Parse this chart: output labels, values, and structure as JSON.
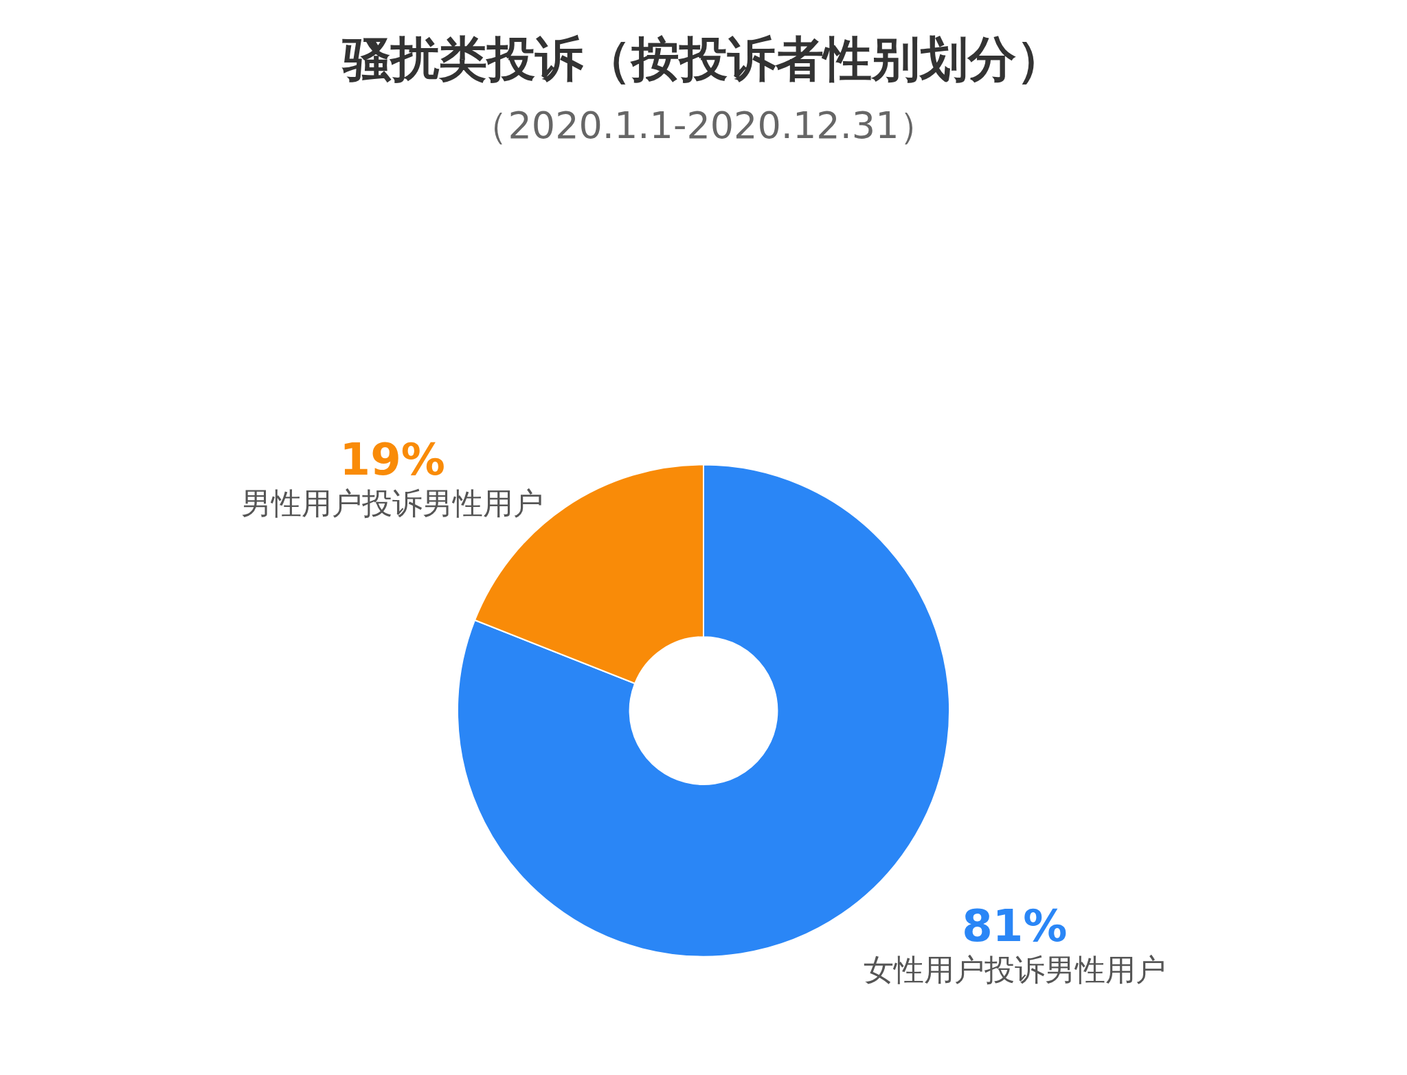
{
  "chart_data": {
    "type": "donut",
    "title": "骚扰类投诉（按投诉者性别划分）",
    "subtitle": "（2020.1.1-2020.12.31）",
    "categories": [
      "女性用户投诉男性用户",
      "男性用户投诉男性用户"
    ],
    "values": [
      81,
      19
    ],
    "value_labels": [
      "81%",
      "19%"
    ],
    "colors": [
      "#2a86f6",
      "#f98b08"
    ],
    "legend": false
  }
}
